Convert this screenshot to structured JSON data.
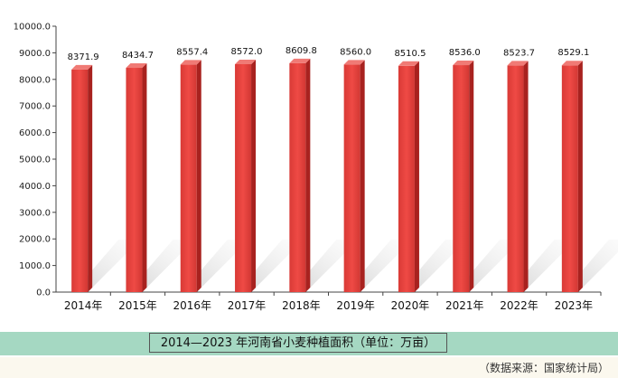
{
  "caption": "2014—2023 年河南省小麦种植面积（单位：万亩）",
  "source": "（数据来源：国家统计局）",
  "chart_data": {
    "type": "bar",
    "categories": [
      "2014年",
      "2015年",
      "2016年",
      "2017年",
      "2018年",
      "2019年",
      "2020年",
      "2021年",
      "2022年",
      "2023年"
    ],
    "values": [
      8371.9,
      8434.7,
      8557.4,
      8572.0,
      8609.8,
      8560.0,
      8510.5,
      8536.0,
      8523.7,
      8529.1
    ],
    "value_labels": [
      "8371.9",
      "8434.7",
      "8557.4",
      "8572.0",
      "8609.8",
      "8560.0",
      "8510.5",
      "8536.0",
      "8523.7",
      "8529.1"
    ],
    "y_ticks": [
      "0.0",
      "1000.0",
      "2000.0",
      "3000.0",
      "4000.0",
      "5000.0",
      "6000.0",
      "7000.0",
      "8000.0",
      "9000.0",
      "10000.0"
    ],
    "ylim": [
      0,
      10000
    ],
    "bar_color": "#e8433e",
    "title": "",
    "xlabel": "",
    "ylabel": "",
    "grid": false,
    "legend": "none"
  }
}
